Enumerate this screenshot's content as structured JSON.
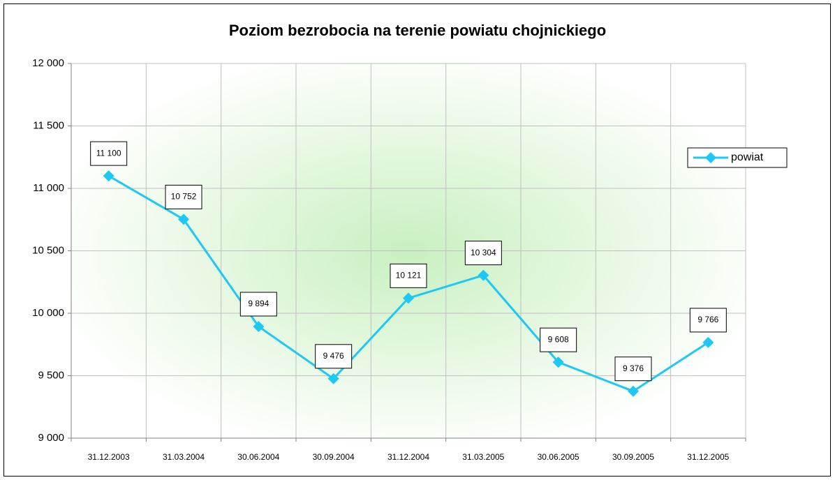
{
  "chart_data": {
    "type": "line",
    "title": "Poziom bezrobocia na terenie powiatu chojnickiego",
    "categories": [
      "31.12.2003",
      "31.03.2004",
      "30.06.2004",
      "30.09.2004",
      "31.12.2004",
      "31.03.2005",
      "30.06.2005",
      "30.09.2005",
      "31.12.2005"
    ],
    "series": [
      {
        "name": "powiat",
        "color": "#1ec8f5",
        "values": [
          11100,
          10752,
          9894,
          9476,
          10121,
          10304,
          9608,
          9376,
          9766
        ],
        "value_labels": [
          "11 100",
          "10 752",
          "9 894",
          "9 476",
          "10 121",
          "10 304",
          "9 608",
          "9 376",
          "9 766"
        ]
      }
    ],
    "ylim": [
      9000,
      12000
    ],
    "yticks": [
      {
        "value": 9000,
        "label": "9 000"
      },
      {
        "value": 9500,
        "label": "9 500"
      },
      {
        "value": 10000,
        "label": "10 000"
      },
      {
        "value": 10500,
        "label": "10 500"
      },
      {
        "value": 11000,
        "label": "11 000"
      },
      {
        "value": 11500,
        "label": "11 500"
      },
      {
        "value": 12000,
        "label": "12 000"
      }
    ],
    "grid": true,
    "legend": "right"
  }
}
